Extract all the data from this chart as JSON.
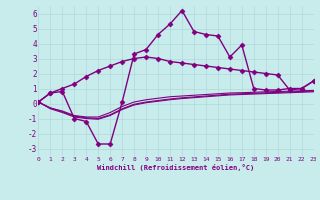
{
  "xlabel": "Windchill (Refroidissement éolien,°C)",
  "ylabel": "",
  "background_color": "#c8ecec",
  "grid_color": "#b0d8d8",
  "line_color": "#800080",
  "xlim": [
    0,
    23
  ],
  "ylim": [
    -3.5,
    6.5
  ],
  "xticks": [
    0,
    1,
    2,
    3,
    4,
    5,
    6,
    7,
    8,
    9,
    10,
    11,
    12,
    13,
    14,
    15,
    16,
    17,
    18,
    19,
    20,
    21,
    22,
    23
  ],
  "yticks": [
    -3,
    -2,
    -1,
    0,
    1,
    2,
    3,
    4,
    5,
    6
  ],
  "series": [
    [
      0.1,
      0.7,
      0.8,
      -1.0,
      -1.2,
      -2.7,
      -2.7,
      0.1,
      3.3,
      3.6,
      4.6,
      5.3,
      6.2,
      4.8,
      4.6,
      4.5,
      3.1,
      3.9,
      1.0,
      0.9,
      0.9,
      1.0,
      1.0,
      1.5
    ],
    [
      0.1,
      0.7,
      1.0,
      1.3,
      1.8,
      2.2,
      2.5,
      2.8,
      3.0,
      3.1,
      3.0,
      2.8,
      2.7,
      2.6,
      2.5,
      2.4,
      2.3,
      2.2,
      2.1,
      2.0,
      1.9,
      0.9,
      1.0,
      1.5
    ],
    [
      0.1,
      -0.3,
      -0.5,
      -0.8,
      -0.9,
      -0.9,
      -0.6,
      -0.2,
      0.1,
      0.25,
      0.35,
      0.45,
      0.5,
      0.55,
      0.6,
      0.65,
      0.7,
      0.72,
      0.75,
      0.78,
      0.8,
      0.82,
      0.85,
      0.87
    ],
    [
      0.1,
      -0.3,
      -0.55,
      -0.85,
      -0.95,
      -1.0,
      -0.75,
      -0.35,
      -0.05,
      0.1,
      0.2,
      0.3,
      0.38,
      0.44,
      0.5,
      0.56,
      0.62,
      0.65,
      0.68,
      0.71,
      0.74,
      0.77,
      0.8,
      0.83
    ],
    [
      0.1,
      -0.35,
      -0.6,
      -0.9,
      -1.0,
      -1.05,
      -0.8,
      -0.4,
      -0.1,
      0.05,
      0.15,
      0.25,
      0.33,
      0.39,
      0.45,
      0.51,
      0.57,
      0.6,
      0.63,
      0.66,
      0.69,
      0.72,
      0.75,
      0.78
    ]
  ],
  "markers": [
    "D",
    "D",
    null,
    null,
    null
  ],
  "linewidths": [
    1.0,
    1.0,
    0.8,
    0.8,
    0.8
  ],
  "marker_size": 2.5
}
